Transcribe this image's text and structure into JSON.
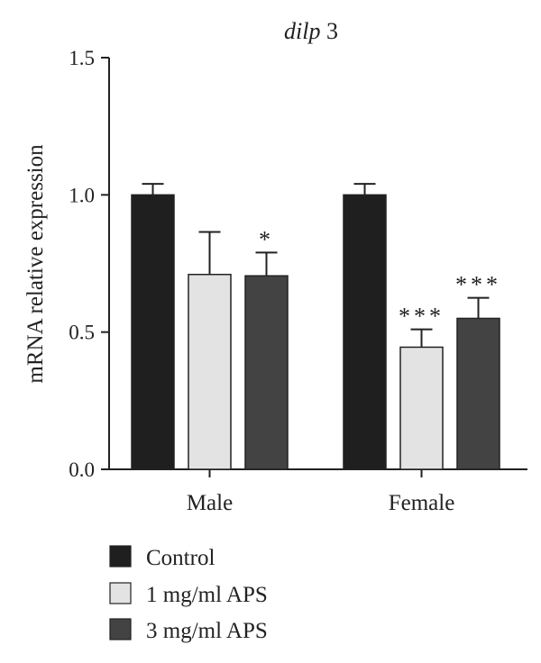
{
  "chart_data": {
    "type": "bar",
    "title_italic": "dilp",
    "title_rest": " 3",
    "ylabel": "mRNA relative expression",
    "xlabel": "",
    "ylim": [
      0,
      1.5
    ],
    "yticks": [
      "0.0",
      "0.5",
      "1.0",
      "1.5"
    ],
    "categories": [
      "Male",
      "Female"
    ],
    "series": [
      {
        "name": "Control",
        "color": "#1f1f1f",
        "values": [
          1.0,
          1.0
        ],
        "errors": [
          0.04,
          0.04
        ],
        "sig": [
          "",
          ""
        ]
      },
      {
        "name": "1 mg/ml APS",
        "color": "#e3e3e3",
        "values": [
          0.71,
          0.445
        ],
        "errors": [
          0.155,
          0.065
        ],
        "sig": [
          "",
          "***"
        ]
      },
      {
        "name": "3 mg/ml APS",
        "color": "#434343",
        "values": [
          0.705,
          0.55
        ],
        "errors": [
          0.085,
          0.075
        ],
        "sig": [
          "*",
          "***"
        ]
      }
    ],
    "grid": false,
    "legend": "bottom-left"
  }
}
